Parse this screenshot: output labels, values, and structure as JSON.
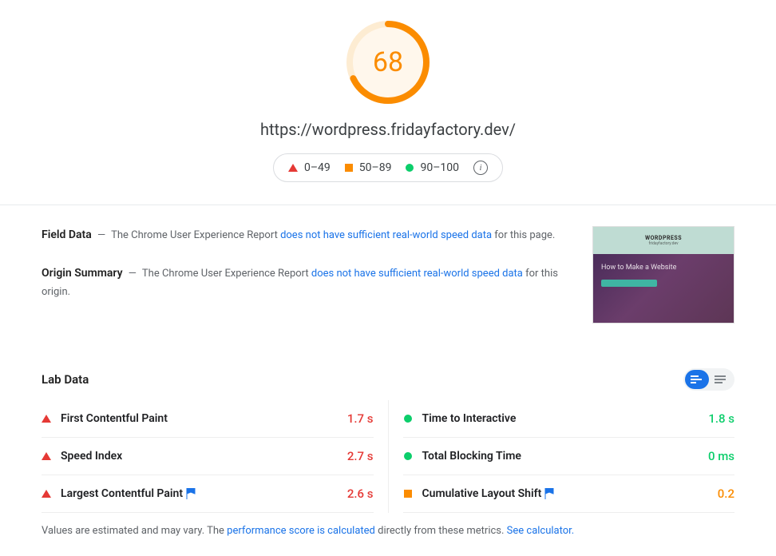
{
  "score": {
    "value": 68,
    "color": "#fb8c00",
    "background_ring": "#fdecd2",
    "inner_fill": "#fff7ec",
    "percent": 0.68
  },
  "url": "https://wordpress.fridayfactory.dev/",
  "legend": {
    "poor": "0–49",
    "avg": "50–89",
    "good": "90–100"
  },
  "field_data": {
    "title": "Field Data",
    "prefix": "The Chrome User Experience Report ",
    "link": "does not have sufficient real-world speed data",
    "suffix": " for this page."
  },
  "origin_summary": {
    "title": "Origin Summary",
    "prefix": "The Chrome User Experience Report ",
    "link": "does not have sufficient real-world speed data",
    "suffix": " for this origin."
  },
  "thumbnail": {
    "brand": "WORDPRESS",
    "tagline": "fridayfactory.dev",
    "hero_text": "How to Make a Website"
  },
  "lab": {
    "title": "Lab Data",
    "metrics_left": [
      {
        "name": "First Contentful Paint",
        "value": "1.7 s",
        "status": "poor",
        "flag": false
      },
      {
        "name": "Speed Index",
        "value": "2.7 s",
        "status": "poor",
        "flag": false
      },
      {
        "name": "Largest Contentful Paint",
        "value": "2.6 s",
        "status": "poor",
        "flag": true
      }
    ],
    "metrics_right": [
      {
        "name": "Time to Interactive",
        "value": "1.8 s",
        "status": "good",
        "flag": false
      },
      {
        "name": "Total Blocking Time",
        "value": "0 ms",
        "status": "good",
        "flag": false
      },
      {
        "name": "Cumulative Layout Shift",
        "value": "0.2",
        "status": "avg",
        "flag": true
      }
    ]
  },
  "footer": {
    "t1": "Values are estimated and may vary. The ",
    "link1": "performance score is calculated",
    "t2": " directly from these metrics. ",
    "link2": "See calculator."
  },
  "colors": {
    "red": "#e53935",
    "orange": "#fb8c00",
    "green": "#0cce6b",
    "link": "#1a73e8",
    "muted": "#5f6368",
    "flag": "#1a73e8"
  }
}
